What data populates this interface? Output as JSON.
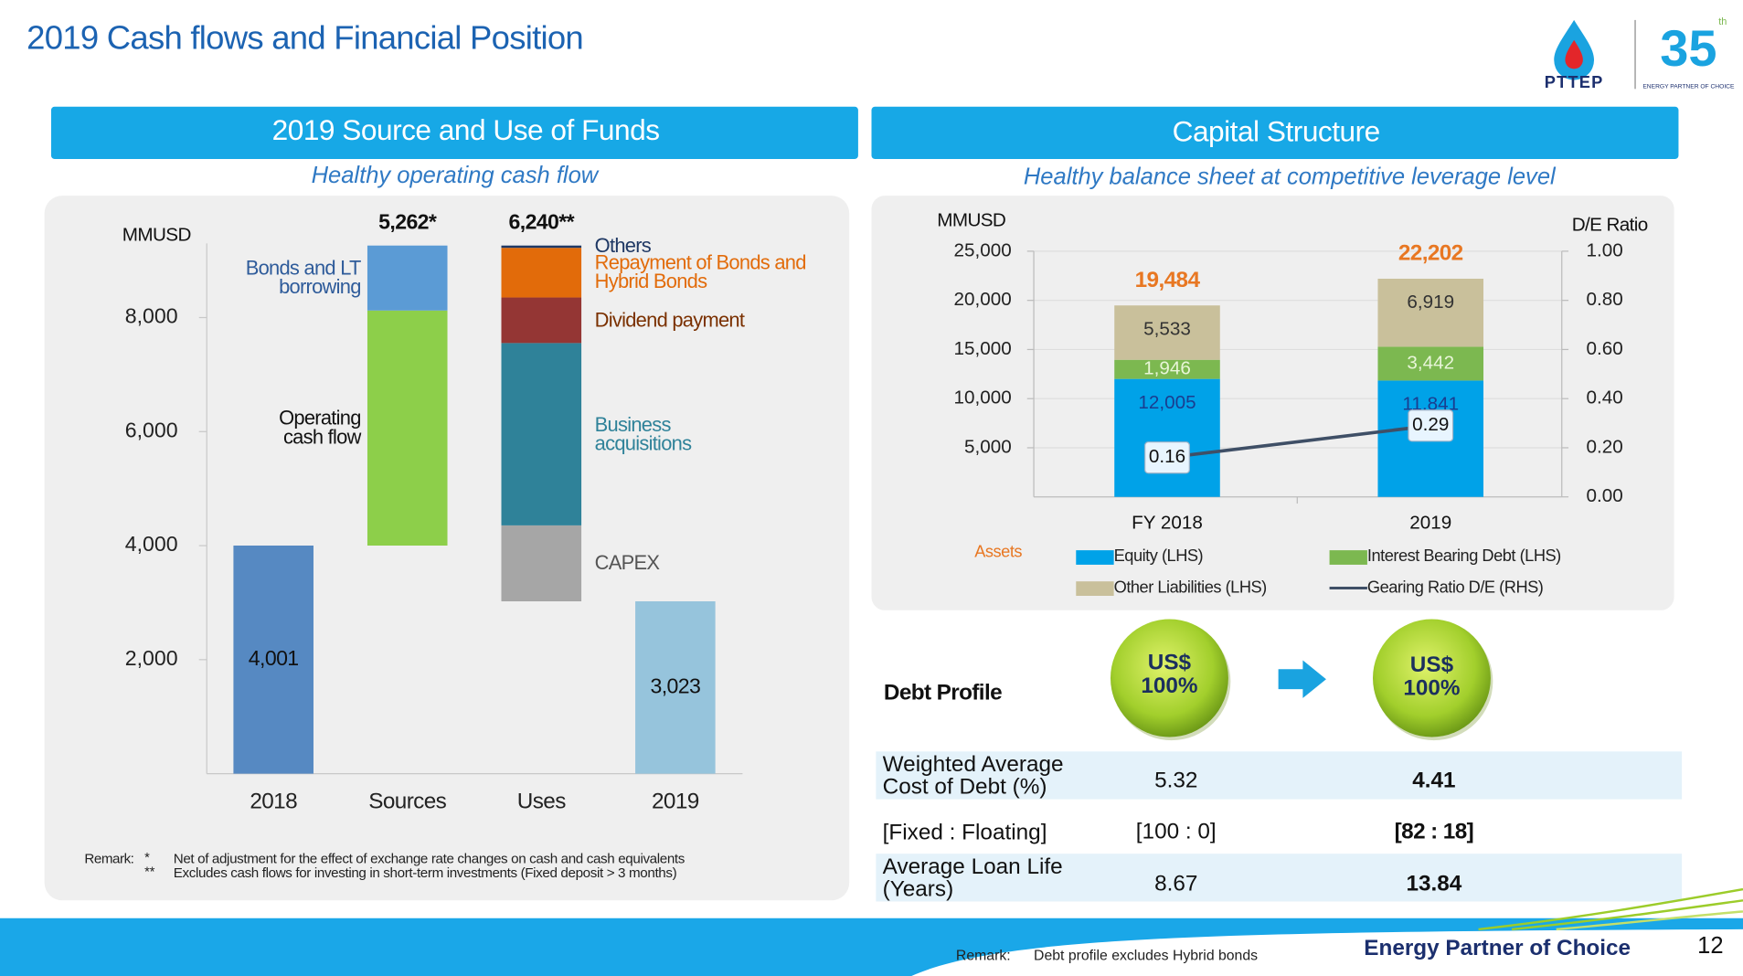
{
  "header": {
    "title": "2019 Cash flows and  Financial Position"
  },
  "logo": {
    "brand": "PTTEP",
    "anniversary": "35",
    "anniversary_suffix": "th",
    "tagline": "ENERGY PARTNER OF CHOICE"
  },
  "sections": [
    {
      "title": "2019 Source and Use of Funds",
      "subtitle": "Healthy operating cash flow"
    },
    {
      "title": "Capital Structure",
      "subtitle": "Healthy balance sheet at competitive leverage level"
    }
  ],
  "chart_data": [
    {
      "type": "waterfall",
      "y_label": "MMUSD",
      "categories": [
        "2018",
        "Sources",
        "Uses",
        "2019"
      ],
      "steps": [
        "total",
        "increase",
        "decrease",
        "total"
      ],
      "values": [
        4001,
        5262,
        6240,
        3023
      ],
      "value_labels": [
        "4,001",
        "5,262*",
        "6,240**",
        "3,023"
      ],
      "bar_colors": [
        "#5689c2",
        "#96c4dc"
      ],
      "series": [
        {
          "name": "Operating cash flow",
          "color": "#8dcf4a",
          "label_color": "#111111",
          "values": [
            null,
            4123,
            null,
            null
          ]
        },
        {
          "name": "Bonds and LT borrowing",
          "color": "#5b9bd5",
          "label_color": "#2e5b9a",
          "values": [
            null,
            1139,
            null,
            null
          ]
        },
        {
          "name": "CAPEX",
          "color": "#a6a6a6",
          "label_color": "#555555",
          "values": [
            null,
            null,
            1332,
            null
          ]
        },
        {
          "name": "Business acquisitions",
          "color": "#2f8299",
          "label_color": "#2f8299",
          "values": [
            null,
            null,
            3198,
            null
          ]
        },
        {
          "name": "Dividend payment",
          "color": "#943634",
          "label_color": "#7a3000",
          "values": [
            null,
            null,
            799,
            null
          ]
        },
        {
          "name": "Repayment of Bonds and Hybrid Bonds",
          "color": "#e26b0a",
          "label_color": "#e26b0a",
          "values": [
            null,
            null,
            871,
            null
          ]
        },
        {
          "name": "Others",
          "color": "#1f3864",
          "label_color": "#1f3864",
          "values": [
            null,
            null,
            40,
            null
          ]
        }
      ],
      "ylim": [
        0,
        9300
      ],
      "yticks": [
        {
          "value": 2000,
          "label": "2,000"
        },
        {
          "value": 4000,
          "label": "4,000"
        },
        {
          "value": 6000,
          "label": "6,000"
        },
        {
          "value": 8000,
          "label": "8,000"
        }
      ],
      "notes": {
        "remark_label": "Remark:",
        "markers": [
          "*",
          "**"
        ],
        "texts": [
          "Net of adjustment for the effect of exchange rate changes on cash and cash equivalents",
          "Excludes cash flows for investing in short-term investments (Fixed deposit > 3 months)"
        ]
      }
    },
    {
      "type": "stacked_bar",
      "y_label": "MMUSD",
      "y2_label": "D/E Ratio",
      "categories": [
        "FY 2018",
        "2019"
      ],
      "series": [
        {
          "name": "Equity (LHS)",
          "color": "#00a2e8",
          "label_color": "#1a3d8f",
          "values": [
            12005,
            11841
          ],
          "value_labels": [
            "12,005",
            "11,841"
          ]
        },
        {
          "name": "Interest Bearing Debt (LHS)",
          "color": "#7cb850",
          "label_color": "#e8f5d8",
          "values": [
            1946,
            3442
          ],
          "value_labels": [
            "1,946",
            "3,442"
          ]
        },
        {
          "name": "Other Liabilities (LHS)",
          "color": "#c9c09b",
          "label_color": "#333333",
          "values": [
            5533,
            6919
          ],
          "value_labels": [
            "5,533",
            "6,919"
          ]
        },
        {
          "name": "Gearing Ratio D/E (RHS)",
          "type": "line",
          "axis": "y2",
          "color": "#3f4f66",
          "values": [
            0.16,
            0.29
          ]
        }
      ],
      "totals": [
        19484,
        22202
      ],
      "total_labels": [
        "19,484",
        "22,202"
      ],
      "total_color": "#e87722",
      "annotation": "Assets",
      "annotation_color": "#e87722",
      "ylim": [
        0,
        25000
      ],
      "yticks": [
        {
          "value": 5000,
          "label": "5,000"
        },
        {
          "value": 10000,
          "label": "10,000"
        },
        {
          "value": 15000,
          "label": "15,000"
        },
        {
          "value": 20000,
          "label": "20,000"
        },
        {
          "value": 25000,
          "label": "25,000"
        }
      ],
      "y2lim": [
        0,
        1
      ],
      "y2ticks": [
        {
          "value": 0,
          "label": "0.00"
        },
        {
          "value": 0.2,
          "label": "0.20"
        },
        {
          "value": 0.4,
          "label": "0.40"
        },
        {
          "value": 0.6,
          "label": "0.60"
        },
        {
          "value": 0.8,
          "label": "0.80"
        },
        {
          "value": 1,
          "label": "1.00"
        }
      ],
      "grid": true
    }
  ],
  "debt_profile": {
    "title": "Debt Profile",
    "currency_mix": [
      {
        "currency": "US$",
        "share": "100%"
      },
      {
        "currency": "US$",
        "share": "100%"
      }
    ],
    "rows": [
      [
        "Weighted Average Cost of Debt (%)",
        "5.32",
        "4.41"
      ],
      [
        "[Fixed : Floating]",
        "[100 : 0]",
        "[82 : 18]"
      ],
      [
        "Average Loan Life (Years)",
        "8.67",
        "13.84"
      ]
    ]
  },
  "footer": {
    "remark_label": "Remark:",
    "remark": "Debt profile excludes Hybrid bonds",
    "tagline": "Energy Partner of Choice",
    "page": "12"
  }
}
